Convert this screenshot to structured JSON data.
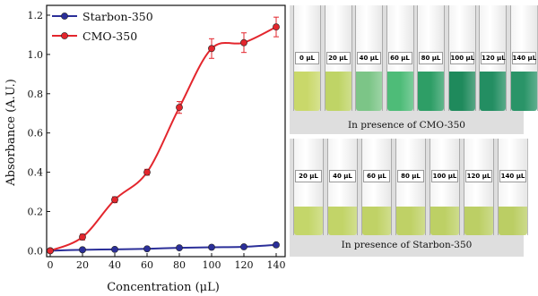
{
  "chart_data": {
    "type": "line",
    "xlabel": "Concentration (μL)",
    "ylabel": "Absorbance (A.U.)",
    "xlim": [
      0,
      140
    ],
    "ylim": [
      -0.03,
      1.25
    ],
    "x_ticks": [
      0,
      20,
      40,
      60,
      80,
      100,
      120,
      140
    ],
    "y_ticks": [
      0.0,
      0.2,
      0.4,
      0.6,
      0.8,
      1.0,
      1.2
    ],
    "x_tick_labels": [
      "0",
      "20",
      "40",
      "60",
      "80",
      "100",
      "120",
      "140"
    ],
    "y_tick_labels": [
      "0.0",
      "0.2",
      "0.4",
      "0.6",
      "0.8",
      "1.0",
      "1.2"
    ],
    "legend_position": "top-left",
    "grid": false,
    "series": [
      {
        "name": "Starbon-350",
        "color": "#2b2f99",
        "x": [
          0,
          20,
          40,
          60,
          80,
          100,
          120,
          140
        ],
        "y": [
          0.0,
          0.005,
          0.007,
          0.01,
          0.015,
          0.018,
          0.02,
          0.03
        ],
        "err": [
          0.005,
          0.005,
          0.005,
          0.005,
          0.005,
          0.005,
          0.005,
          0.006
        ]
      },
      {
        "name": "CMO-350",
        "color": "#e3262d",
        "x": [
          0,
          20,
          40,
          60,
          80,
          100,
          120,
          140
        ],
        "y": [
          0.0,
          0.07,
          0.26,
          0.4,
          0.73,
          1.03,
          1.06,
          1.14
        ],
        "err": [
          0.005,
          0.015,
          0.015,
          0.015,
          0.03,
          0.05,
          0.05,
          0.05
        ]
      }
    ]
  },
  "photos": {
    "top": {
      "caption": "In presence of CMO-350",
      "vials": [
        {
          "label": "0 μL",
          "color": "#c9d86a"
        },
        {
          "label": "20 μL",
          "color": "#bfd466"
        },
        {
          "label": "40 μL",
          "color": "#7cc587"
        },
        {
          "label": "60 μL",
          "color": "#4ebc78"
        },
        {
          "label": "80 μL",
          "color": "#2e9e66"
        },
        {
          "label": "100 μL",
          "color": "#1f8a5c"
        },
        {
          "label": "120 μL",
          "color": "#238e62"
        },
        {
          "label": "140 μL",
          "color": "#2a9468"
        }
      ]
    },
    "bottom": {
      "caption": "In presence of Starbon-350",
      "vials": [
        {
          "label": "20 μL",
          "color": "#c4d66a"
        },
        {
          "label": "40 μL",
          "color": "#c2d468"
        },
        {
          "label": "60 μL",
          "color": "#c0d266"
        },
        {
          "label": "80 μL",
          "color": "#bfd166"
        },
        {
          "label": "100 μL",
          "color": "#bdd065"
        },
        {
          "label": "120 μL",
          "color": "#bccf65"
        },
        {
          "label": "140 μL",
          "color": "#bbce64"
        }
      ]
    }
  }
}
